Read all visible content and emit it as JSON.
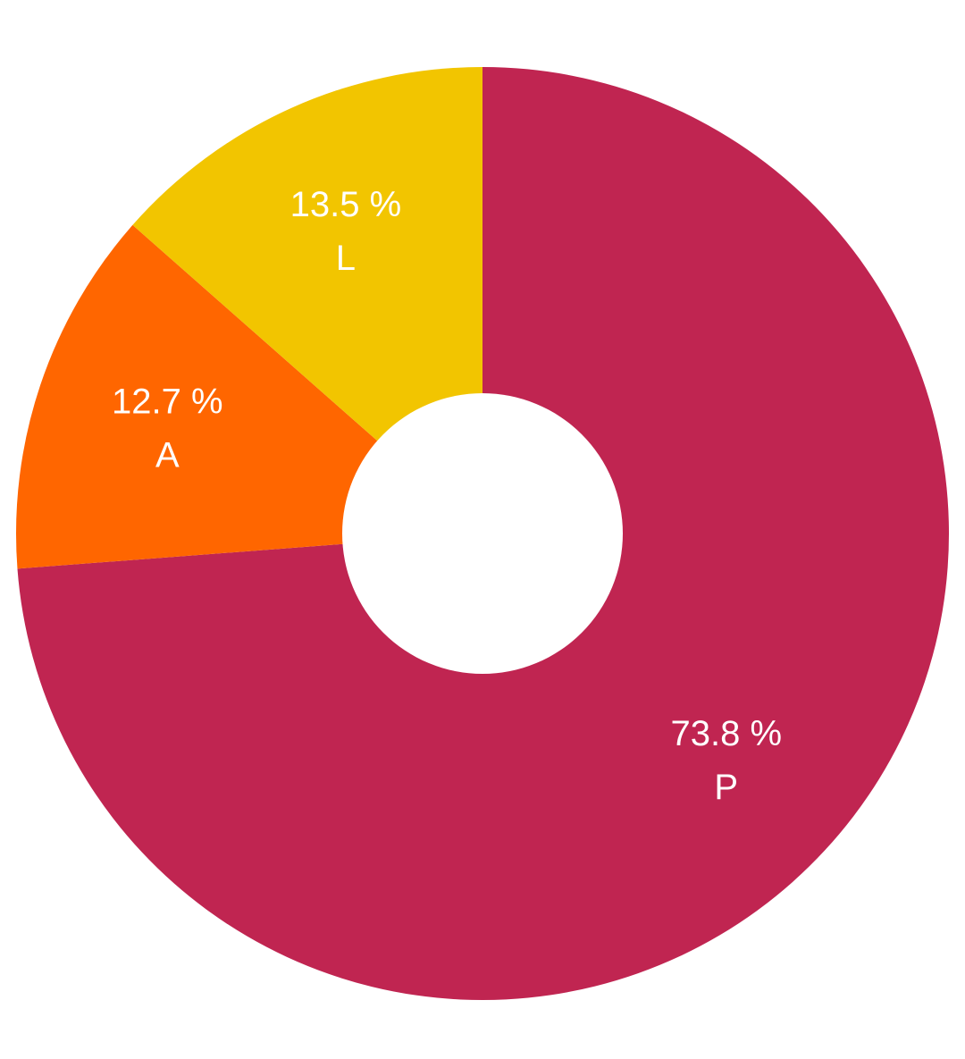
{
  "chart_data": {
    "type": "pie",
    "donut": true,
    "title": "",
    "slices": [
      {
        "label": "P",
        "value": 73.8,
        "value_text": "73.8 %",
        "color": "#C02551"
      },
      {
        "label": "A",
        "value": 12.7,
        "value_text": "12.7 %",
        "color": "#FF6600"
      },
      {
        "label": "L",
        "value": 13.5,
        "value_text": "13.5 %",
        "color": "#F2C500"
      }
    ],
    "start": "12 o'clock",
    "direction": "clockwise",
    "legend": "none",
    "background": "#FFFFFF"
  }
}
